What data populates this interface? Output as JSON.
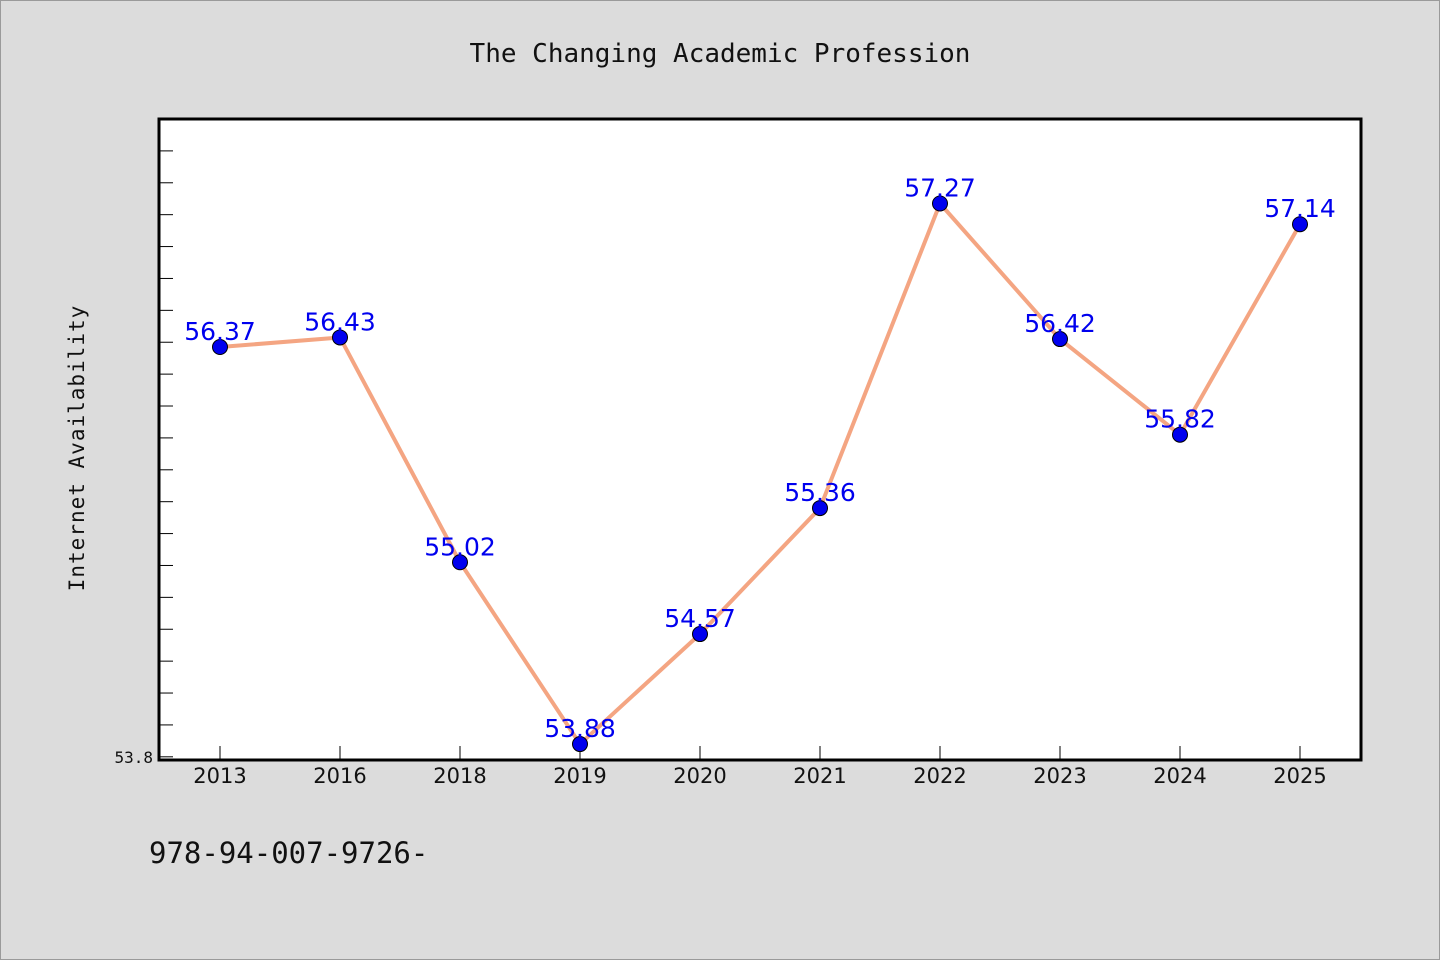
{
  "chart_data": {
    "type": "line",
    "title": "The Changing Academic Profession",
    "xlabel": "",
    "ylabel": "Internet Availability",
    "categories": [
      "2013",
      "2016",
      "2018",
      "2019",
      "2020",
      "2021",
      "2022",
      "2023",
      "2024",
      "2025"
    ],
    "series": [
      {
        "values": [
          56.37,
          56.43,
          55.02,
          53.88,
          54.57,
          55.36,
          57.27,
          56.42,
          55.82,
          57.14
        ]
      }
    ],
    "data_labels": [
      "56.37",
      "56.43",
      "55.02",
      "53.88",
      "54.57",
      "55.36",
      "57.27",
      "56.42",
      "55.82",
      "57.14"
    ],
    "ylim": [
      53.78,
      57.8
    ],
    "y_tick_labels": [
      {
        "value": 53.8,
        "label": "53.8"
      }
    ],
    "y_minor_tick_step": 0.2,
    "grid": false,
    "legend": "none",
    "colors": {
      "line": "#f4a582",
      "marker": "#0000ee",
      "data_label": "#0000ee",
      "background": "#dcdcdc",
      "plot_background": "#ffffff"
    }
  },
  "footnote": "978-94-007-9726-"
}
